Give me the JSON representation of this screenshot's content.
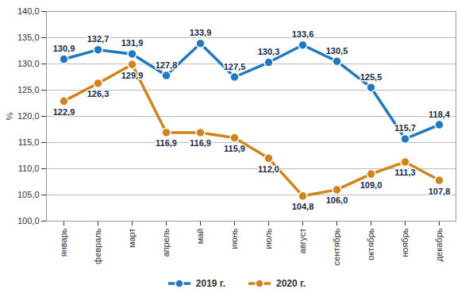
{
  "chart_data": {
    "type": "line",
    "y_label": "%",
    "categories": [
      "январь",
      "февраль",
      "март",
      "апрель",
      "май",
      "июнь",
      "июль",
      "август",
      "сентябрь",
      "октябрь",
      "ноябрь",
      "декабрь"
    ],
    "series": [
      {
        "name": "2019 г.",
        "color": "#1f78c1",
        "marker": "circle",
        "values": [
          130.9,
          132.7,
          131.9,
          127.8,
          133.9,
          127.5,
          130.3,
          133.6,
          130.5,
          125.5,
          115.7,
          118.4
        ],
        "value_labels": [
          "130,9",
          "132,7",
          "131,9",
          "127,8",
          "133,9",
          "127,5",
          "130,3",
          "133,6",
          "130,5",
          "125,5",
          "115,7",
          "118,4"
        ]
      },
      {
        "name": "2020 г.",
        "color": "#d0841c",
        "marker": "circle",
        "values": [
          122.9,
          126.3,
          129.9,
          116.9,
          116.9,
          115.9,
          112.0,
          104.8,
          106.0,
          109.0,
          111.3,
          107.8
        ],
        "value_labels": [
          "122,9",
          "126,3",
          "129,9",
          "116,9",
          "116,9",
          "115,9",
          "112,0",
          "104,8",
          "106,0",
          "109,0",
          "111,3",
          "107,8"
        ]
      }
    ],
    "ylim": [
      100,
      140
    ],
    "yticks": [
      {
        "value": 100,
        "label": "100,0"
      },
      {
        "value": 105,
        "label": "105,0"
      },
      {
        "value": 110,
        "label": "110,0"
      },
      {
        "value": 115,
        "label": "115,0"
      },
      {
        "value": 120,
        "label": "120,0"
      },
      {
        "value": 125,
        "label": "125,0"
      },
      {
        "value": 130,
        "label": "130,0"
      },
      {
        "value": 135,
        "label": "135,0"
      },
      {
        "value": 140,
        "label": "140,0"
      }
    ],
    "grid": true,
    "data_labels": true,
    "legend": "bottom"
  }
}
